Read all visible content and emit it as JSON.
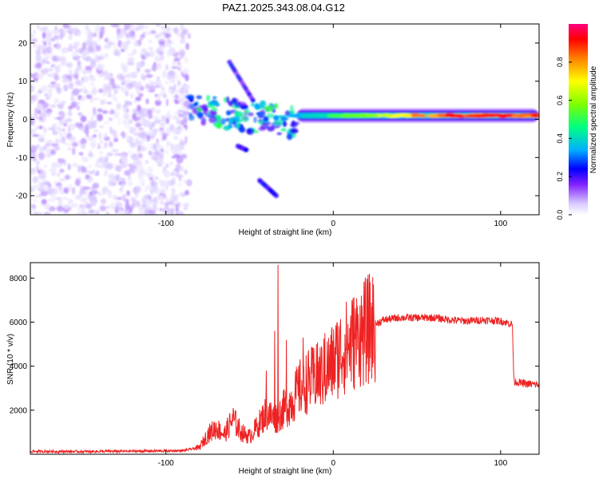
{
  "title": "PAZ1.2025.343.08.04.G12",
  "chart_data": [
    {
      "type": "heatmap",
      "panel": "spectrogram",
      "xlabel": "Height of straight line (km)",
      "ylabel": "Frequency (Hz)",
      "xlim": [
        -181,
        123
      ],
      "ylim": [
        -25,
        25
      ],
      "x_ticks": [
        -100,
        0,
        100
      ],
      "y_ticks": [
        -20,
        -10,
        0,
        10,
        20
      ],
      "colorbar": {
        "label": "Normalized spectral amplitude",
        "range": [
          0,
          1
        ],
        "ticks": [
          0.0,
          0.2,
          0.4,
          0.6,
          0.8
        ],
        "colormap": [
          "#ffffff",
          "#d8c8ff",
          "#8020ff",
          "#0000ff",
          "#00b0ff",
          "#00ff80",
          "#80ff00",
          "#ffff00",
          "#ff8000",
          "#ff0000",
          "#ff0080"
        ]
      },
      "regions": [
        {
          "name": "noise",
          "x_range": [
            -181,
            -86
          ],
          "f_range": [
            -25,
            25
          ],
          "amplitude": 0.1
        },
        {
          "name": "multipath",
          "x_range": [
            -86,
            -22
          ],
          "f_range": [
            -6,
            8
          ],
          "amplitude": 0.3
        },
        {
          "name": "main_tone",
          "x_range": [
            -22,
            123
          ],
          "frequency_hz": 1,
          "amplitude": [
            0.4,
            0.9
          ]
        },
        {
          "name": "upper_branch",
          "x_range": [
            -62,
            -48
          ],
          "f_range": [
            15,
            5
          ],
          "amplitude": 0.25
        },
        {
          "name": "lower_branch",
          "x_range": [
            -44,
            -34
          ],
          "f_range": [
            -16,
            -20
          ],
          "amplitude": 0.25
        },
        {
          "name": "mid_branch",
          "x_range": [
            -57,
            -52
          ],
          "f_range": [
            -7,
            -8
          ],
          "amplitude": 0.25
        }
      ]
    },
    {
      "type": "line",
      "panel": "snr",
      "xlabel": "Height of straight line (km)",
      "ylabel": "SNR (10 * v/v)",
      "xlim": [
        -181,
        123
      ],
      "ylim": [
        0,
        8700
      ],
      "x_ticks": [
        -100,
        0,
        100
      ],
      "y_ticks": [
        2000,
        4000,
        6000,
        8000
      ],
      "series": [
        {
          "name": "SNR",
          "color": "#ee2222",
          "points": [
            [
              -181,
              130
            ],
            [
              -150,
              120
            ],
            [
              -120,
              140
            ],
            [
              -90,
              160
            ],
            [
              -80,
              300
            ],
            [
              -75,
              900
            ],
            [
              -70,
              1200
            ],
            [
              -65,
              900
            ],
            [
              -60,
              1600
            ],
            [
              -55,
              1000
            ],
            [
              -50,
              800
            ],
            [
              -45,
              1300
            ],
            [
              -40,
              1900
            ],
            [
              -35,
              1600
            ],
            [
              -30,
              2000
            ],
            [
              -25,
              2400
            ],
            [
              -20,
              3000
            ],
            [
              -15,
              3300
            ],
            [
              -10,
              3500
            ],
            [
              -5,
              3700
            ],
            [
              0,
              4200
            ],
            [
              5,
              4700
            ],
            [
              10,
              5000
            ],
            [
              15,
              5300
            ],
            [
              20,
              5600
            ],
            [
              25,
              5900
            ],
            [
              30,
              6100
            ],
            [
              40,
              6200
            ],
            [
              50,
              6200
            ],
            [
              60,
              6200
            ],
            [
              70,
              6100
            ],
            [
              80,
              6050
            ],
            [
              90,
              6100
            ],
            [
              100,
              6050
            ],
            [
              107,
              5900
            ],
            [
              108,
              3300
            ],
            [
              115,
              3200
            ],
            [
              123,
              3150
            ]
          ],
          "spikes": [
            [
              -33,
              8600
            ],
            [
              -40,
              3800
            ],
            [
              -35,
              5600
            ],
            [
              -28,
              5200
            ],
            [
              -18,
              5300
            ],
            [
              -10,
              5000
            ],
            [
              -5,
              5500
            ],
            [
              2,
              5500
            ],
            [
              8,
              5700
            ],
            [
              15,
              5800
            ]
          ]
        }
      ]
    }
  ]
}
